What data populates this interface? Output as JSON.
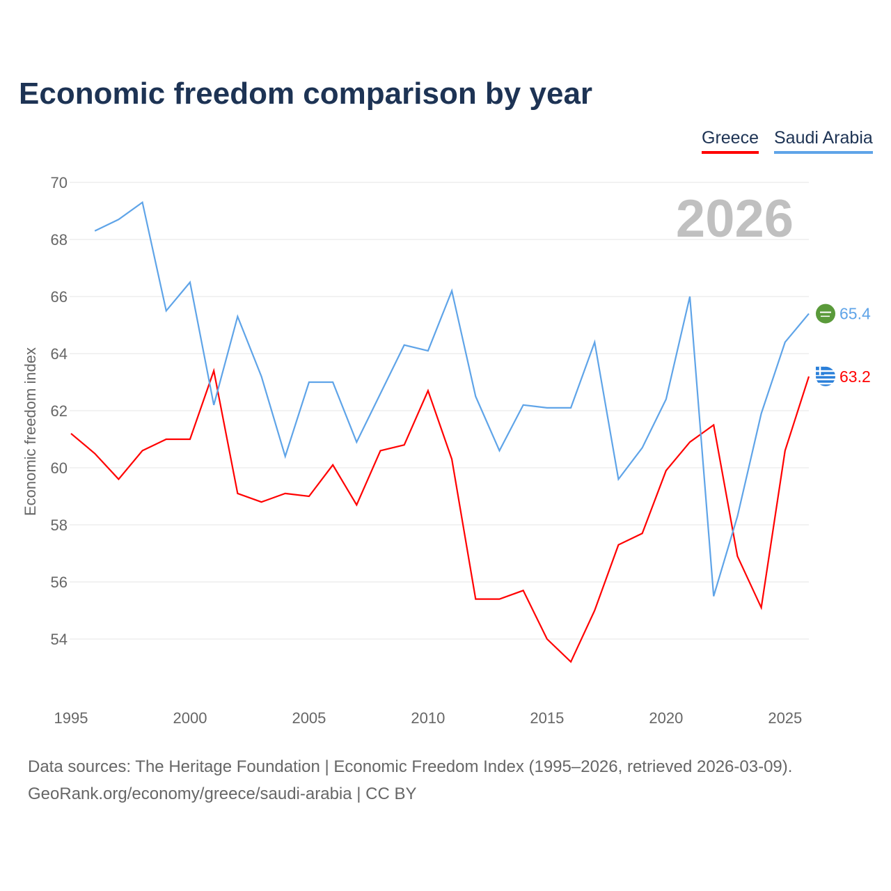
{
  "title": "Economic freedom comparison by year",
  "source_line1": "Data sources: The Heritage Foundation | Economic Freedom Index (1995–2026, retrieved 2026-03-09).",
  "source_line2": "GeoRank.org/economy/greece/saudi-arabia | CC BY",
  "chart_data": {
    "type": "line",
    "title": "Economic freedom comparison by year",
    "xlabel": "",
    "ylabel": "Economic freedom index",
    "year_watermark": "2026",
    "xlim": [
      1995,
      2026
    ],
    "ylim": [
      52,
      70
    ],
    "yticks": [
      54,
      56,
      58,
      60,
      62,
      64,
      66,
      68,
      70
    ],
    "xticks": [
      1995,
      2000,
      2005,
      2010,
      2015,
      2020,
      2025
    ],
    "grid": true,
    "legend_position": "top-right",
    "series": [
      {
        "name": "Greece",
        "color": "#ff0000",
        "end_label": "63.2",
        "flag": "greece-flag",
        "x": [
          1995,
          1996,
          1997,
          1998,
          1999,
          2000,
          2001,
          2002,
          2003,
          2004,
          2005,
          2006,
          2007,
          2008,
          2009,
          2010,
          2011,
          2012,
          2013,
          2014,
          2015,
          2016,
          2017,
          2018,
          2019,
          2020,
          2021,
          2022,
          2023,
          2024,
          2025,
          2026
        ],
        "values": [
          61.2,
          60.5,
          59.6,
          60.6,
          61.0,
          61.0,
          63.4,
          59.1,
          58.8,
          59.1,
          59.0,
          60.1,
          58.7,
          60.6,
          60.8,
          62.7,
          60.3,
          55.4,
          55.4,
          55.7,
          54.0,
          53.2,
          55.0,
          57.3,
          57.7,
          59.9,
          60.9,
          61.5,
          56.9,
          55.1,
          60.6,
          63.2
        ]
      },
      {
        "name": "Saudi Arabia",
        "color": "#5fa4e8",
        "end_label": "65.4",
        "flag": "saudi-arabia-flag",
        "x": [
          1996,
          1997,
          1998,
          1999,
          2000,
          2001,
          2002,
          2003,
          2004,
          2005,
          2006,
          2007,
          2008,
          2009,
          2010,
          2011,
          2012,
          2013,
          2014,
          2015,
          2016,
          2017,
          2018,
          2019,
          2020,
          2021,
          2022,
          2023,
          2024,
          2025,
          2026
        ],
        "values": [
          68.3,
          68.7,
          69.3,
          65.5,
          66.5,
          62.2,
          65.3,
          63.2,
          60.4,
          63.0,
          63.0,
          60.9,
          62.6,
          64.3,
          64.1,
          66.2,
          62.5,
          60.6,
          62.2,
          62.1,
          62.1,
          64.4,
          59.6,
          60.7,
          62.4,
          66.0,
          55.5,
          58.3,
          61.9,
          64.4,
          65.4
        ]
      }
    ]
  }
}
